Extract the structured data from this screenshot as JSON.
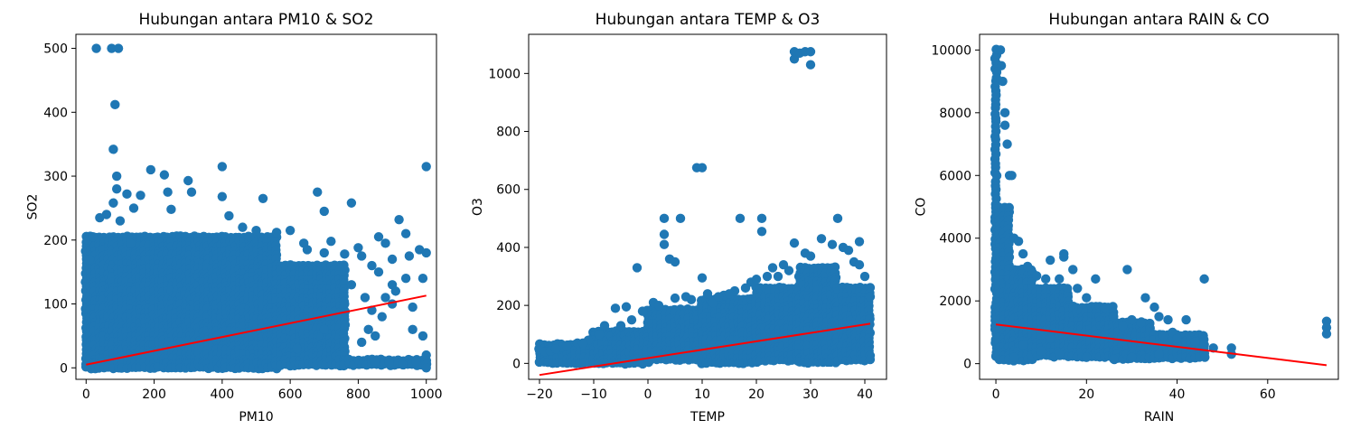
{
  "chart_data": [
    {
      "type": "scatter",
      "title": "Hubungan antara PM10 & SO2",
      "xlabel": "PM10",
      "ylabel": "SO2",
      "xlim": [
        -30,
        1030
      ],
      "ylim": [
        -18,
        522
      ],
      "xticks": [
        0,
        200,
        400,
        600,
        800,
        1000
      ],
      "yticks": [
        0,
        100,
        200,
        300,
        400,
        500
      ],
      "grid": false,
      "colors": {
        "points": "#1f77b4",
        "regression": "#ff0000"
      },
      "dense_regions": [
        {
          "x": [
            0,
            560
          ],
          "y": [
            0,
            205
          ]
        },
        {
          "x": [
            560,
            760
          ],
          "y": [
            0,
            160
          ]
        },
        {
          "x": [
            760,
            1000
          ],
          "y": [
            0,
            12
          ]
        }
      ],
      "points": [
        [
          30,
          500
        ],
        [
          75,
          500
        ],
        [
          95,
          500
        ],
        [
          85,
          412
        ],
        [
          80,
          342
        ],
        [
          90,
          300
        ],
        [
          90,
          280
        ],
        [
          80,
          258
        ],
        [
          60,
          240
        ],
        [
          120,
          272
        ],
        [
          100,
          230
        ],
        [
          140,
          250
        ],
        [
          160,
          270
        ],
        [
          190,
          310
        ],
        [
          230,
          302
        ],
        [
          240,
          275
        ],
        [
          250,
          248
        ],
        [
          300,
          293
        ],
        [
          310,
          275
        ],
        [
          400,
          315
        ],
        [
          400,
          268
        ],
        [
          420,
          238
        ],
        [
          520,
          265
        ],
        [
          460,
          220
        ],
        [
          480,
          205
        ],
        [
          500,
          215
        ],
        [
          560,
          212
        ],
        [
          600,
          215
        ],
        [
          640,
          195
        ],
        [
          680,
          275
        ],
        [
          700,
          245
        ],
        [
          650,
          185
        ],
        [
          700,
          180
        ],
        [
          720,
          198
        ],
        [
          760,
          178
        ],
        [
          780,
          258
        ],
        [
          800,
          188
        ],
        [
          810,
          175
        ],
        [
          840,
          160
        ],
        [
          860,
          205
        ],
        [
          880,
          195
        ],
        [
          900,
          170
        ],
        [
          920,
          232
        ],
        [
          940,
          210
        ],
        [
          950,
          175
        ],
        [
          980,
          185
        ],
        [
          1000,
          315
        ],
        [
          990,
          140
        ],
        [
          960,
          95
        ],
        [
          940,
          140
        ],
        [
          900,
          100
        ],
        [
          880,
          110
        ],
        [
          860,
          150
        ],
        [
          840,
          90
        ],
        [
          820,
          110
        ],
        [
          810,
          40
        ],
        [
          830,
          60
        ],
        [
          850,
          50
        ],
        [
          870,
          80
        ],
        [
          960,
          60
        ],
        [
          990,
          50
        ],
        [
          1000,
          20
        ],
        [
          1000,
          0
        ],
        [
          970,
          10
        ],
        [
          930,
          5
        ],
        [
          890,
          8
        ],
        [
          850,
          10
        ],
        [
          620,
          30
        ],
        [
          700,
          60
        ],
        [
          760,
          100
        ],
        [
          780,
          130
        ],
        [
          900,
          130
        ],
        [
          1000,
          180
        ],
        [
          910,
          120
        ],
        [
          10,
          170
        ],
        [
          5,
          200
        ],
        [
          20,
          205
        ],
        [
          40,
          235
        ],
        [
          130,
          195
        ]
      ],
      "regression": {
        "x": [
          0,
          1000
        ],
        "y": [
          5,
          113
        ]
      }
    },
    {
      "type": "scatter",
      "title": "Hubungan antara TEMP & O3",
      "xlabel": "TEMP",
      "ylabel": "O3",
      "xlim": [
        -22,
        44
      ],
      "ylim": [
        -55,
        1135
      ],
      "xticks": [
        -20,
        -10,
        0,
        10,
        20,
        30,
        40
      ],
      "yticks": [
        0,
        200,
        400,
        600,
        800,
        1000
      ],
      "grid": false,
      "colors": {
        "points": "#1f77b4",
        "regression": "#ff0000"
      },
      "dense_regions": [
        {
          "x": [
            -20,
            -10
          ],
          "y": [
            0,
            65
          ]
        },
        {
          "x": [
            -10,
            0
          ],
          "y": [
            0,
            110
          ]
        },
        {
          "x": [
            0,
            10
          ],
          "y": [
            0,
            185
          ]
        },
        {
          "x": [
            10,
            20
          ],
          "y": [
            0,
            220
          ]
        },
        {
          "x": [
            20,
            28
          ],
          "y": [
            0,
            260
          ]
        },
        {
          "x": [
            28,
            35
          ],
          "y": [
            0,
            330
          ]
        },
        {
          "x": [
            35,
            41
          ],
          "y": [
            0,
            260
          ]
        }
      ],
      "points": [
        [
          -20,
          45
        ],
        [
          -19,
          40
        ],
        [
          -18,
          42
        ],
        [
          -16,
          55
        ],
        [
          -15,
          60
        ],
        [
          -13,
          70
        ],
        [
          -11,
          80
        ],
        [
          -8,
          130
        ],
        [
          -6,
          190
        ],
        [
          -4,
          195
        ],
        [
          -2,
          330
        ],
        [
          1,
          210
        ],
        [
          2,
          200
        ],
        [
          3,
          500
        ],
        [
          3,
          445
        ],
        [
          3,
          410
        ],
        [
          4,
          360
        ],
        [
          5,
          350
        ],
        [
          6,
          500
        ],
        [
          8,
          220
        ],
        [
          9,
          675
        ],
        [
          10,
          675
        ],
        [
          10,
          295
        ],
        [
          12,
          210
        ],
        [
          14,
          235
        ],
        [
          16,
          250
        ],
        [
          17,
          500
        ],
        [
          19,
          280
        ],
        [
          21,
          500
        ],
        [
          21,
          455
        ],
        [
          22,
          300
        ],
        [
          24,
          300
        ],
        [
          26,
          320
        ],
        [
          27,
          1050
        ],
        [
          27,
          1075
        ],
        [
          28,
          1070
        ],
        [
          29,
          1075
        ],
        [
          30,
          1075
        ],
        [
          30,
          1030
        ],
        [
          27,
          415
        ],
        [
          29,
          380
        ],
        [
          32,
          430
        ],
        [
          34,
          410
        ],
        [
          35,
          500
        ],
        [
          36,
          400
        ],
        [
          38,
          350
        ],
        [
          39,
          340
        ],
        [
          40,
          300
        ],
        [
          41,
          230
        ],
        [
          39,
          420
        ],
        [
          37,
          390
        ],
        [
          30,
          370
        ],
        [
          25,
          340
        ],
        [
          23,
          330
        ],
        [
          20,
          290
        ],
        [
          18,
          260
        ],
        [
          15,
          240
        ],
        [
          13,
          230
        ],
        [
          11,
          240
        ],
        [
          7,
          230
        ],
        [
          5,
          225
        ],
        [
          -1,
          180
        ],
        [
          -3,
          150
        ],
        [
          -5,
          130
        ],
        [
          -9,
          100
        ],
        [
          -12,
          70
        ],
        [
          -17,
          50
        ]
      ],
      "regression": {
        "x": [
          -20,
          41
        ],
        "y": [
          -40,
          137
        ]
      }
    },
    {
      "type": "scatter",
      "title": "Hubungan antara RAIN & CO",
      "xlabel": "RAIN",
      "ylabel": "CO",
      "xlim": [
        -3.6,
        75.6
      ],
      "ylim": [
        -500,
        10500
      ],
      "xticks": [
        0,
        20,
        40,
        60
      ],
      "yticks": [
        0,
        2000,
        4000,
        6000,
        8000,
        10000
      ],
      "grid": false,
      "colors": {
        "points": "#1f77b4",
        "regression": "#ff0000"
      },
      "dense_regions": [
        {
          "x": [
            0,
            0.8
          ],
          "y": [
            100,
            10000
          ]
        },
        {
          "x": [
            0.8,
            3
          ],
          "y": [
            100,
            5000
          ]
        },
        {
          "x": [
            3,
            8
          ],
          "y": [
            100,
            3000
          ]
        },
        {
          "x": [
            8,
            16
          ],
          "y": [
            100,
            2400
          ]
        },
        {
          "x": [
            16,
            26
          ],
          "y": [
            100,
            1800
          ]
        },
        {
          "x": [
            26,
            34
          ],
          "y": [
            100,
            1300
          ]
        },
        {
          "x": [
            34,
            46
          ],
          "y": [
            100,
            900
          ]
        }
      ],
      "points": [
        [
          1,
          10000
        ],
        [
          1.5,
          9000
        ],
        [
          2,
          8000
        ],
        [
          2.5,
          7000
        ],
        [
          3,
          6000
        ],
        [
          1.2,
          9500
        ],
        [
          2,
          7600
        ],
        [
          3.5,
          6000
        ],
        [
          4,
          4000
        ],
        [
          5,
          3900
        ],
        [
          6,
          3500
        ],
        [
          7,
          3100
        ],
        [
          9,
          2800
        ],
        [
          11,
          2700
        ],
        [
          12,
          3300
        ],
        [
          14,
          2700
        ],
        [
          15,
          3500
        ],
        [
          15,
          3400
        ],
        [
          17,
          3000
        ],
        [
          18,
          2400
        ],
        [
          20,
          2100
        ],
        [
          22,
          2700
        ],
        [
          24,
          1800
        ],
        [
          26,
          1500
        ],
        [
          28,
          1200
        ],
        [
          29,
          3000
        ],
        [
          30,
          1400
        ],
        [
          32,
          1300
        ],
        [
          33,
          2100
        ],
        [
          35,
          1800
        ],
        [
          36,
          1500
        ],
        [
          37,
          900
        ],
        [
          38,
          1400
        ],
        [
          39,
          1000
        ],
        [
          40,
          800
        ],
        [
          42,
          1400
        ],
        [
          44,
          700
        ],
        [
          46,
          2700
        ],
        [
          46,
          600
        ],
        [
          48,
          500
        ],
        [
          52,
          500
        ],
        [
          52,
          300
        ],
        [
          73,
          1350
        ],
        [
          73,
          1150
        ],
        [
          73,
          950
        ],
        [
          6,
          600
        ],
        [
          10,
          400
        ],
        [
          14,
          300
        ],
        [
          20,
          200
        ],
        [
          26,
          150
        ],
        [
          30,
          200
        ],
        [
          36,
          300
        ],
        [
          4,
          200
        ],
        [
          12,
          800
        ],
        [
          18,
          900
        ]
      ],
      "regression": {
        "x": [
          0,
          73
        ],
        "y": [
          1250,
          -50
        ]
      }
    }
  ]
}
